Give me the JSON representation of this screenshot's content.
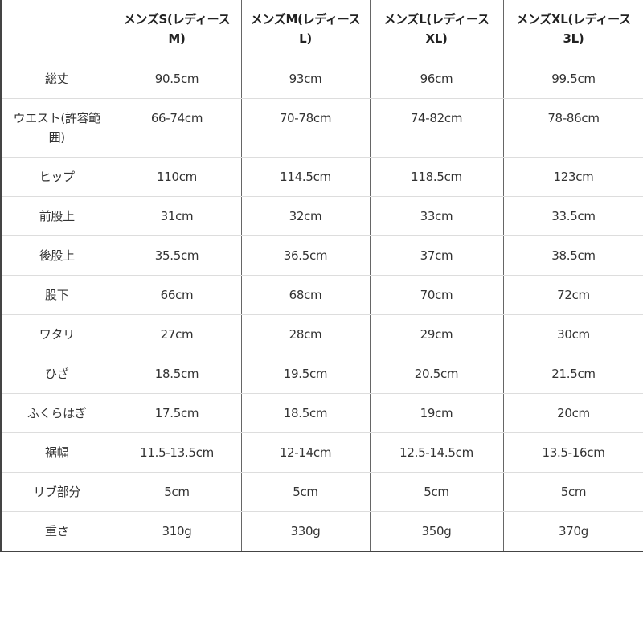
{
  "headers": [
    "",
    "メンズS(レディースM)",
    "メンズM(レディースL)",
    "メンズL(レディースXL)",
    "メンズXL(レディース3L)"
  ],
  "rows": [
    [
      "総丈",
      "90.5cm",
      "93cm",
      "96cm",
      "99.5cm"
    ],
    [
      "ウエスト(許容範囲)",
      "66-74cm",
      "70-78cm",
      "74-82cm",
      "78-86cm"
    ],
    [
      "ヒップ",
      "110cm",
      "114.5cm",
      "118.5cm",
      "123cm"
    ],
    [
      "前股上",
      "31cm",
      "32cm",
      "33cm",
      "33.5cm"
    ],
    [
      "後股上",
      "35.5cm",
      "36.5cm",
      "37cm",
      "38.5cm"
    ],
    [
      "股下",
      "66cm",
      "68cm",
      "70cm",
      "72cm"
    ],
    [
      "ワタリ",
      "27cm",
      "28cm",
      "29cm",
      "30cm"
    ],
    [
      "ひざ",
      "18.5cm",
      "19.5cm",
      "20.5cm",
      "21.5cm"
    ],
    [
      "ふくらはぎ",
      "17.5cm",
      "18.5cm",
      "19cm",
      "20cm"
    ],
    [
      "裾幅",
      "11.5-13.5cm",
      "12-14cm",
      "12.5-14.5cm",
      "13.5-16cm"
    ],
    [
      "リブ部分",
      "5cm",
      "5cm",
      "5cm",
      "5cm"
    ],
    [
      "重さ",
      "310g",
      "330g",
      "350g",
      "370g"
    ]
  ]
}
